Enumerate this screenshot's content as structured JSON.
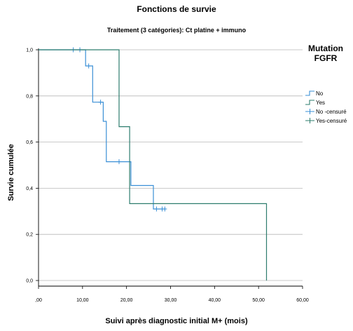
{
  "chart_data": {
    "type": "line",
    "title": "Fonctions de survie",
    "subtitle": "Traitement (3 catégories): Ct platine + immuno",
    "xlabel": "Suivi après diagnostic initial M+ (mois)",
    "ylabel": "Survie cumulée",
    "xlim": [
      0,
      60
    ],
    "ylim": [
      0,
      1
    ],
    "x_ticks": [
      ",00",
      "10,00",
      "20,00",
      "30,00",
      "40,00",
      "50,00",
      "60,00"
    ],
    "y_ticks": [
      "0,0",
      "0,2",
      "0,4",
      "0,6",
      "0,8",
      "1,0"
    ],
    "grid": "horizontal",
    "legend_title": "Mutation FGFR",
    "legend_position": "right",
    "legend": [
      "No",
      "Yes",
      "No -censuré",
      "Yes-censuré"
    ],
    "series": [
      {
        "name": "No",
        "color": "#3a8fd6",
        "step_points": [
          [
            0,
            1.0
          ],
          [
            10.7,
            1.0
          ],
          [
            10.7,
            0.93
          ],
          [
            12.3,
            0.93
          ],
          [
            12.3,
            0.773
          ],
          [
            14.7,
            0.773
          ],
          [
            14.7,
            0.69
          ],
          [
            15.4,
            0.69
          ],
          [
            15.4,
            0.515
          ],
          [
            21.0,
            0.515
          ],
          [
            21.0,
            0.412
          ],
          [
            26.1,
            0.412
          ],
          [
            26.1,
            0.31
          ],
          [
            28.8,
            0.31
          ]
        ],
        "censored": [
          [
            7.9,
            1.0
          ],
          [
            9.4,
            1.0
          ],
          [
            11.4,
            0.93
          ],
          [
            14.1,
            0.773
          ],
          [
            18.3,
            0.515
          ],
          [
            26.8,
            0.31
          ],
          [
            28.1,
            0.31
          ],
          [
            28.7,
            0.31
          ]
        ]
      },
      {
        "name": "Yes",
        "color": "#2e7d6e",
        "step_points": [
          [
            0,
            1.0
          ],
          [
            18.3,
            1.0
          ],
          [
            18.3,
            0.667
          ],
          [
            20.7,
            0.667
          ],
          [
            20.7,
            0.333
          ],
          [
            51.8,
            0.333
          ],
          [
            51.8,
            0.0
          ]
        ],
        "censored": []
      }
    ]
  }
}
